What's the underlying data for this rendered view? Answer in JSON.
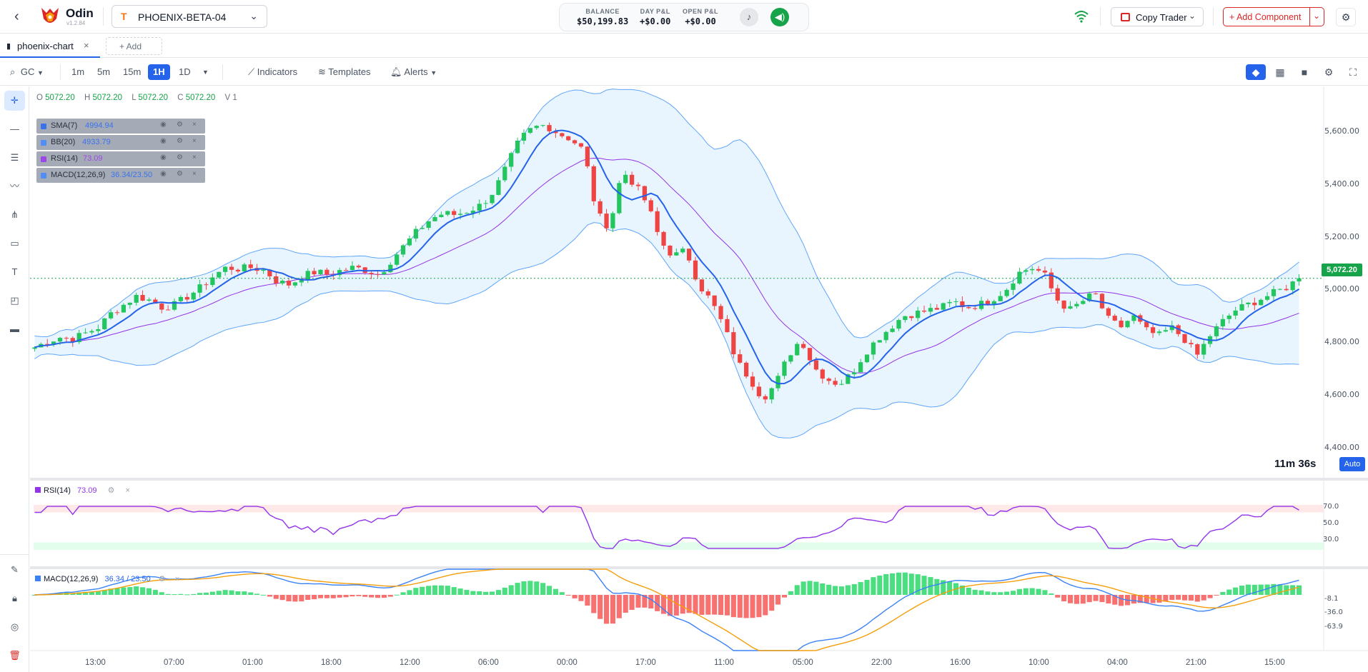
{
  "app": {
    "name": "Odin",
    "version": "v1.2.84"
  },
  "account": {
    "name": "PHOENIX-BETA-04"
  },
  "stats": [
    {
      "label": "BALANCE",
      "value": "$50,199.83"
    },
    {
      "label": "DAY P&L",
      "value": "+$0.00"
    },
    {
      "label": "OPEN P&L",
      "value": "+$0.00"
    }
  ],
  "header": {
    "copy_trader": "Copy Trader",
    "add_component": "+ Add Component"
  },
  "tabs": {
    "active": "phoenix-chart",
    "add": "+ Add"
  },
  "toolbar": {
    "symbol": "GC",
    "timeframes": [
      "1m",
      "5m",
      "15m",
      "1H",
      "1D"
    ],
    "active_timeframe": "1H",
    "indicators": "Indicators",
    "templates": "Templates",
    "alerts": "Alerts"
  },
  "ohlc": {
    "o": "5072.20",
    "h": "5072.20",
    "l": "5072.20",
    "c": "5072.20",
    "v": "1"
  },
  "ohlc_labels": {
    "o": "O",
    "h": "H",
    "l": "L",
    "c": "C",
    "v": "V"
  },
  "legend": [
    {
      "name": "SMA(7)",
      "value": "4994.94",
      "color": "#2563eb"
    },
    {
      "name": "BB(20)",
      "value": "4933.79",
      "color": "#3b82f6"
    },
    {
      "name": "RSI(14)",
      "value": "73.09",
      "color": "#9333ea"
    },
    {
      "name": "MACD(12,26,9)",
      "value": "36.34/23.50",
      "color": "#3b82f6"
    }
  ],
  "price_axis": [
    "5,600.00",
    "5,400.00",
    "5,200.00",
    "5,000.00",
    "4,800.00",
    "4,600.00",
    "4,400.00"
  ],
  "current_price": "5,072.20",
  "countdown": "11m 36s",
  "auto_label": "Auto",
  "rsi_panel": {
    "name": "RSI(14)",
    "value": "73.09",
    "levels": [
      "70.0",
      "50.0",
      "30.0"
    ]
  },
  "macd_panel": {
    "name": "MACD(12,26,9)",
    "value": "36.34 / 23.50",
    "levels": [
      "-8.1",
      "-36.0",
      "-63.9"
    ]
  },
  "time_axis": [
    "13:00",
    "07:00",
    "01:00",
    "18:00",
    "12:00",
    "06:00",
    "00:00",
    "17:00",
    "11:00",
    "05:00",
    "22:00",
    "16:00",
    "10:00",
    "04:00",
    "21:00",
    "15:00"
  ],
  "colors": {
    "up": "#22c55e",
    "down": "#ef4444",
    "sma": "#2563eb",
    "bb": "#60a5fa",
    "bb_mid": "#9333ea",
    "accent": "#2563eb",
    "danger": "#dc2626"
  },
  "chart_data": {
    "type": "candlestick",
    "y_range": [
      4380,
      5720
    ],
    "close_path": [
      4830,
      4850,
      4865,
      4860,
      4880,
      4900,
      4950,
      4980,
      5010,
      4995,
      4970,
      4980,
      5010,
      5040,
      5080,
      5110,
      5105,
      5110,
      5100,
      5060,
      5050,
      5080,
      5095,
      5085,
      5100,
      5110,
      5100,
      5085,
      5140,
      5190,
      5240,
      5280,
      5300,
      5295,
      5310,
      5330,
      5380,
      5470,
      5560,
      5600,
      5610,
      5580,
      5560,
      5520,
      5300,
      5250,
      5450,
      5400,
      5330,
      5200,
      5150,
      5170,
      5050,
      4990,
      4900,
      4780,
      4720,
      4650,
      4700,
      4800,
      4860,
      4760,
      4720,
      4700,
      4740,
      4810,
      4860,
      4900,
      4940,
      4950,
      4960,
      4970,
      4990,
      4970,
      4980,
      5000,
      5030,
      5090,
      5110,
      5090,
      5000,
      4960,
      4990,
      5020,
      4930,
      4900,
      4940,
      4890,
      4870,
      4900,
      4860,
      4800,
      4870,
      4920,
      4960,
      4980,
      5000,
      5020,
      5040,
      5072
    ],
    "sma_last": 4994.94,
    "rsi_last": 73.09,
    "macd_last": 36.34,
    "signal_last": 23.5
  }
}
